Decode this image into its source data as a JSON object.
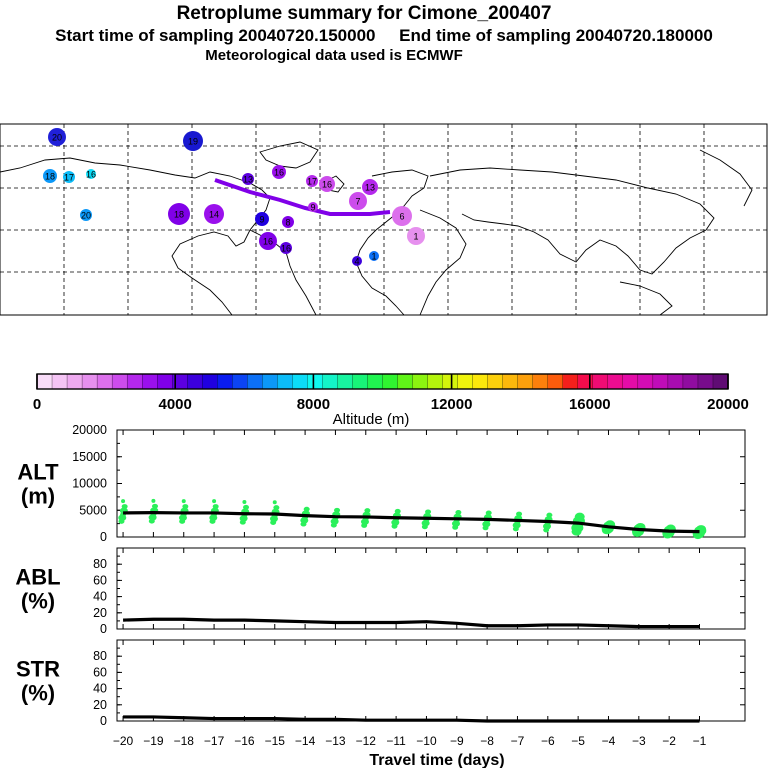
{
  "header": {
    "title": "Retroplume summary for Cimone_200407",
    "sampling": "Start time of sampling 20040720.150000     End time of sampling 20040720.180000",
    "met": "Meteorological data used is ECMWF"
  },
  "colorbar": {
    "label": "Altitude (m)",
    "ticks": [
      "0",
      "4000",
      "8000",
      "12000",
      "16000",
      "20000"
    ],
    "colors": [
      "#f8dcf8",
      "#f4c4f4",
      "#eeaaf0",
      "#e690ee",
      "#dc70ec",
      "#cc4cec",
      "#b428ec",
      "#9a10ec",
      "#8000e8",
      "#5c00e0",
      "#3c00dc",
      "#2000e0",
      "#0a1cf0",
      "#0c44f4",
      "#0c70f6",
      "#0c98f8",
      "#0cbcf8",
      "#0cdcf8",
      "#10f8ee",
      "#14f4c8",
      "#18f4a0",
      "#18f478",
      "#20f450",
      "#30f430",
      "#60f418",
      "#8cf410",
      "#b4f40c",
      "#d4f40c",
      "#f0f40c",
      "#fce80c",
      "#fcd00c",
      "#fcb80c",
      "#fca00c",
      "#fc800c",
      "#fc5c0c",
      "#f4201c",
      "#f40c4c",
      "#f00c74",
      "#ec0c90",
      "#e40ca8",
      "#d40cb4",
      "#c00cb8",
      "#a80cb0",
      "#900ca0",
      "#780c8c",
      "#600c74"
    ]
  },
  "chart_data": [
    {
      "type": "line",
      "panel": "ALT",
      "ylabel": "ALT\n(m)",
      "ylim": [
        0,
        20000
      ],
      "yticks": [
        "20000",
        "15000",
        "10000",
        "5000",
        "0"
      ],
      "x": [
        -20,
        -19,
        -18,
        -17,
        -16,
        -15,
        -14,
        -13,
        -12,
        -11,
        -10,
        -9,
        -8,
        -7,
        -6,
        -5,
        -4,
        -3,
        -2,
        -1
      ],
      "values": [
        4500,
        4550,
        4500,
        4500,
        4350,
        4300,
        4000,
        3800,
        3750,
        3600,
        3500,
        3400,
        3300,
        3100,
        2900,
        2600,
        1900,
        1400,
        1100,
        1000
      ]
    },
    {
      "type": "line",
      "panel": "ABL",
      "ylabel": "ABL\n(%)",
      "ylim": [
        0,
        100
      ],
      "yticks": [
        "80",
        "60",
        "40",
        "20",
        "0"
      ],
      "x": [
        -20,
        -19,
        -18,
        -17,
        -16,
        -15,
        -14,
        -13,
        -12,
        -11,
        -10,
        -9,
        -8,
        -7,
        -6,
        -5,
        -4,
        -3,
        -2,
        -1
      ],
      "values": [
        11,
        12,
        12,
        11,
        11,
        10,
        9,
        8,
        8,
        8,
        9,
        7,
        4,
        4,
        5,
        5,
        4,
        3,
        3,
        3
      ]
    },
    {
      "type": "line",
      "panel": "STR",
      "ylabel": "STR\n(%)",
      "ylim": [
        0,
        100
      ],
      "yticks": [
        "80",
        "60",
        "40",
        "20",
        "0"
      ],
      "x": [
        -20,
        -19,
        -18,
        -17,
        -16,
        -15,
        -14,
        -13,
        -12,
        -11,
        -10,
        -9,
        -8,
        -7,
        -6,
        -5,
        -4,
        -3,
        -2,
        -1
      ],
      "values": [
        5,
        5,
        4,
        3,
        3,
        3,
        2,
        2,
        1,
        1,
        1,
        1,
        0,
        0,
        0,
        0,
        0,
        0,
        0,
        0
      ]
    }
  ],
  "xaxis": {
    "label": "Travel time (days)",
    "ticks": [
      "−20",
      "−19",
      "−18",
      "−17",
      "−16",
      "−15",
      "−14",
      "−13",
      "−12",
      "−11",
      "−10",
      "−9",
      "−8",
      "−7",
      "−6",
      "−5",
      "−4",
      "−3",
      "−2",
      "−1"
    ]
  },
  "map": {
    "clusters": [
      {
        "label": "20",
        "color": "#2020d8"
      },
      {
        "label": "19",
        "color": "#1818d0"
      },
      {
        "label": "18",
        "color": "#0c98f8"
      },
      {
        "label": "17",
        "color": "#0cbcf8"
      },
      {
        "label": "16",
        "color": "#0cdcf8"
      },
      {
        "label": "20",
        "color": "#0c98f8"
      },
      {
        "label": "16",
        "color": "#9a10ec"
      },
      {
        "label": "17",
        "color": "#b428ec"
      },
      {
        "label": "18",
        "color": "#8000e8"
      },
      {
        "label": "16",
        "color": "#cc4cec"
      },
      {
        "label": "13",
        "color": "#b428ec"
      },
      {
        "label": "7",
        "color": "#cc4cec"
      },
      {
        "label": "6",
        "color": "#dc70ec"
      },
      {
        "label": "16",
        "color": "#8000e8"
      },
      {
        "label": "14",
        "color": "#9a10ec"
      },
      {
        "label": "13",
        "color": "#5c00e0"
      },
      {
        "label": "9",
        "color": "#2000e0"
      },
      {
        "label": "8",
        "color": "#8000e8"
      },
      {
        "label": "9",
        "color": "#b428ec"
      },
      {
        "label": "16",
        "color": "#5c00e0"
      },
      {
        "label": "1",
        "color": "#e690ee"
      },
      {
        "label": "4",
        "color": "#3c00dc"
      },
      {
        "label": "1",
        "color": "#0c70f6"
      }
    ]
  }
}
